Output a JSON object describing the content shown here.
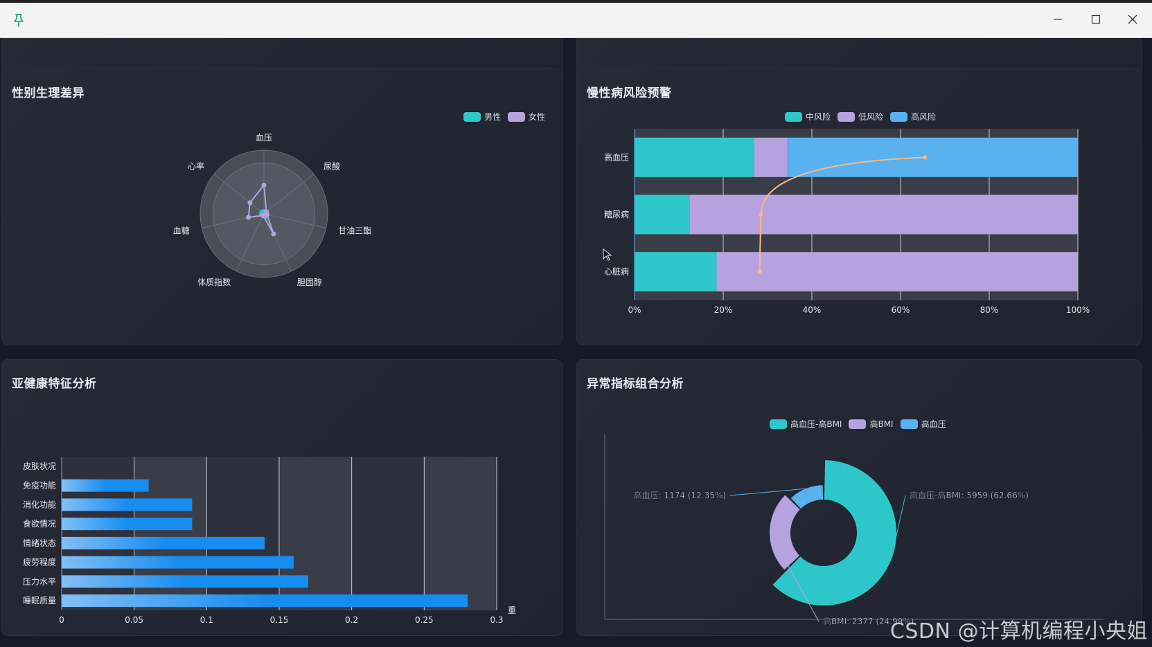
{
  "window": {
    "controls": [
      "minimize",
      "maximize",
      "close"
    ]
  },
  "panels": {
    "gender": {
      "title": "性别生理差异",
      "legend": [
        {
          "label": "男性",
          "color": "#2ec7c9"
        },
        {
          "label": "女性",
          "color": "#b6a2de"
        }
      ],
      "indicators": [
        "血压",
        "尿酸",
        "甘油三酯",
        "胆固醇",
        "体质指数",
        "血糖",
        "心率"
      ]
    },
    "chronic": {
      "title": "慢性病风险预警",
      "legend": [
        {
          "label": "中风险",
          "color": "#2ec7c9"
        },
        {
          "label": "低风险",
          "color": "#b6a2de"
        },
        {
          "label": "高风险",
          "color": "#5ab1ef"
        }
      ]
    },
    "subhealth": {
      "title": "亚健康特征分析",
      "axis_name": "重"
    },
    "abnormal": {
      "title": "异常指标组合分析",
      "legend": [
        {
          "label": "高血压-高BMI",
          "color": "#2ec7c9"
        },
        {
          "label": "高BMI",
          "color": "#b6a2de"
        },
        {
          "label": "高血压",
          "color": "#5ab1ef"
        }
      ]
    }
  },
  "chart_data": [
    {
      "type": "radar",
      "title": "性别生理差异",
      "indicators": [
        "血压",
        "尿酸",
        "甘油三酯",
        "胆固醇",
        "体质指数",
        "血糖",
        "心率"
      ],
      "series": [
        {
          "name": "男性",
          "values": [
            0.04,
            0.04,
            0.04,
            0.05,
            0.03,
            0.04,
            0.04
          ]
        },
        {
          "name": "女性",
          "values": [
            0.45,
            0.05,
            0.05,
            0.35,
            0.03,
            0.25,
            0.28
          ]
        }
      ]
    },
    {
      "type": "bar",
      "title": "慢性病风险预警",
      "orientation": "horizontal-stacked-percent",
      "categories": [
        "高血压",
        "糖尿病",
        "心脏病"
      ],
      "series": [
        {
          "name": "中风险",
          "values": [
            27,
            12.5,
            18.5
          ]
        },
        {
          "name": "低风险",
          "values": [
            7.5,
            87.5,
            81.5
          ]
        },
        {
          "name": "高风险",
          "values": [
            65.5,
            0,
            0
          ]
        }
      ],
      "line": {
        "values": [
          65.5,
          28.5,
          28.2
        ]
      },
      "xlim": [
        0,
        100
      ],
      "xticks": [
        "0%",
        "20%",
        "40%",
        "60%",
        "80%",
        "100%"
      ]
    },
    {
      "type": "bar",
      "title": "亚健康特征分析",
      "orientation": "horizontal",
      "categories": [
        "皮肤状况",
        "免疫功能",
        "消化功能",
        "食欲情况",
        "情绪状态",
        "疲劳程度",
        "压力水平",
        "睡眠质量"
      ],
      "values": [
        0,
        0.06,
        0.09,
        0.09,
        0.14,
        0.16,
        0.17,
        0.28
      ],
      "xlim": [
        0,
        0.3
      ],
      "xticks": [
        "0",
        "0.05",
        "0.1",
        "0.15",
        "0.2",
        "0.25",
        "0.3"
      ],
      "xlabel": "重"
    },
    {
      "type": "pie",
      "title": "异常指标组合分析",
      "variant": "nightingale-rose",
      "slices": [
        {
          "name": "高血压-高BMI",
          "value": 5959,
          "label": "高血压-高BMI: 5959 (62.66%)"
        },
        {
          "name": "高BMI",
          "value": 2377,
          "label": "高BMI: 2377 (24.99%)"
        },
        {
          "name": "高血压",
          "value": 1174,
          "label": "高血压: 1174 (12.35%)"
        }
      ]
    }
  ],
  "watermark": "CSDN @计算机编程小央姐"
}
